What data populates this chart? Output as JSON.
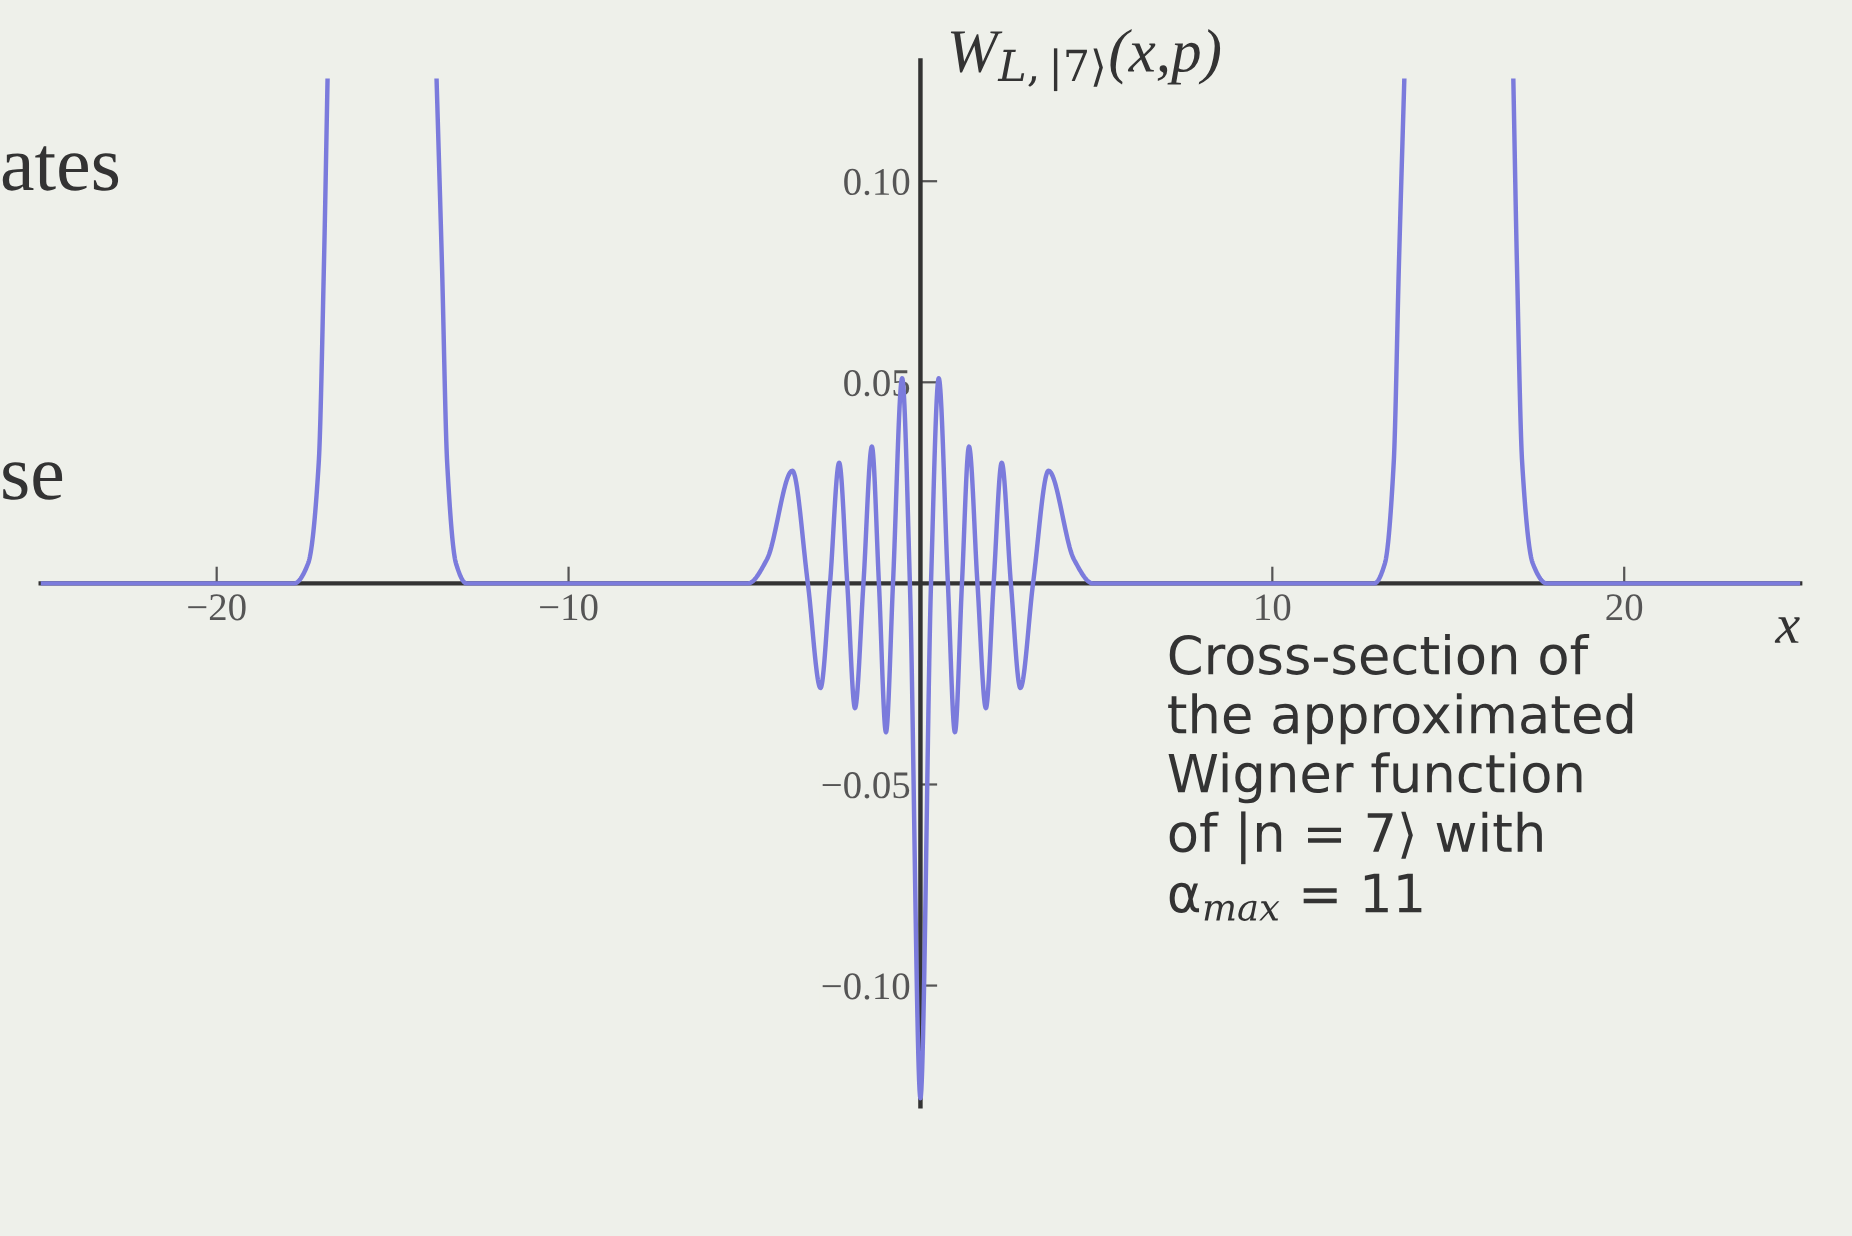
{
  "chart_data": {
    "type": "line",
    "ylabel": "W$_{L,|7⟩}$(x,p)",
    "xlabel": "x",
    "annotations": [
      "ates",
      "se",
      "Cross-section of\nthe approximated\nWigner function\nof |n = 7⟩ with\nα$_{max}$ = 11"
    ],
    "xlim": [
      -25,
      25
    ],
    "ylim": [
      -0.13,
      0.13
    ],
    "xticks": [
      {
        "value": -20,
        "label": "−20"
      },
      {
        "value": -10,
        "label": "−10"
      },
      10,
      20
    ],
    "yticks": [
      {
        "value": -0.1,
        "label": "−0.10"
      },
      {
        "value": -0.05,
        "label": "−0.05"
      },
      {
        "value": 0.05,
        "label": "0.05"
      },
      {
        "value": 0.1,
        "label": "0.10"
      }
    ],
    "grid": false,
    "marker": "none",
    "line_style": "solid",
    "series": [
      {
        "color": "#7b7bdc",
        "x": [
          -25,
          -17.8,
          -17.4,
          -17.1,
          -16.95,
          -16.85,
          -15.3,
          -13.75,
          -13.6,
          -13.45,
          -13.2,
          -12.9,
          -4.9,
          -4.36,
          -3.64,
          -3.2,
          -2.84,
          -2.57,
          -2.31,
          -2.08,
          -1.86,
          -1.62,
          -1.38,
          -1.18,
          -0.98,
          -0.78,
          -0.52,
          -0.3,
          0,
          0.3,
          0.52,
          0.78,
          0.98,
          1.18,
          1.38,
          1.62,
          1.86,
          2.08,
          2.31,
          2.57,
          2.84,
          3.2,
          3.64,
          4.36,
          4.9,
          12.9,
          13.2,
          13.45,
          13.6,
          13.75,
          15.3,
          16.85,
          16.95,
          17.1,
          17.4,
          17.8,
          25
        ],
        "values": [
          0,
          0,
          0.005,
          0.03,
          0.08,
          0.125,
          null,
          0.125,
          0.08,
          0.03,
          0.005,
          0,
          0,
          0.006,
          0.028,
          0,
          -0.026,
          0,
          0.03,
          0,
          -0.031,
          0,
          0.034,
          0,
          -0.037,
          0,
          0.051,
          0,
          -0.128,
          0,
          0.051,
          0,
          -0.037,
          0,
          0.034,
          0,
          -0.031,
          0,
          0.03,
          0,
          -0.026,
          0,
          0.028,
          0.006,
          0,
          0,
          0.005,
          0.03,
          0.08,
          0.125,
          null,
          0.125,
          0.08,
          0.03,
          0.005,
          0,
          0
        ]
      }
    ]
  }
}
